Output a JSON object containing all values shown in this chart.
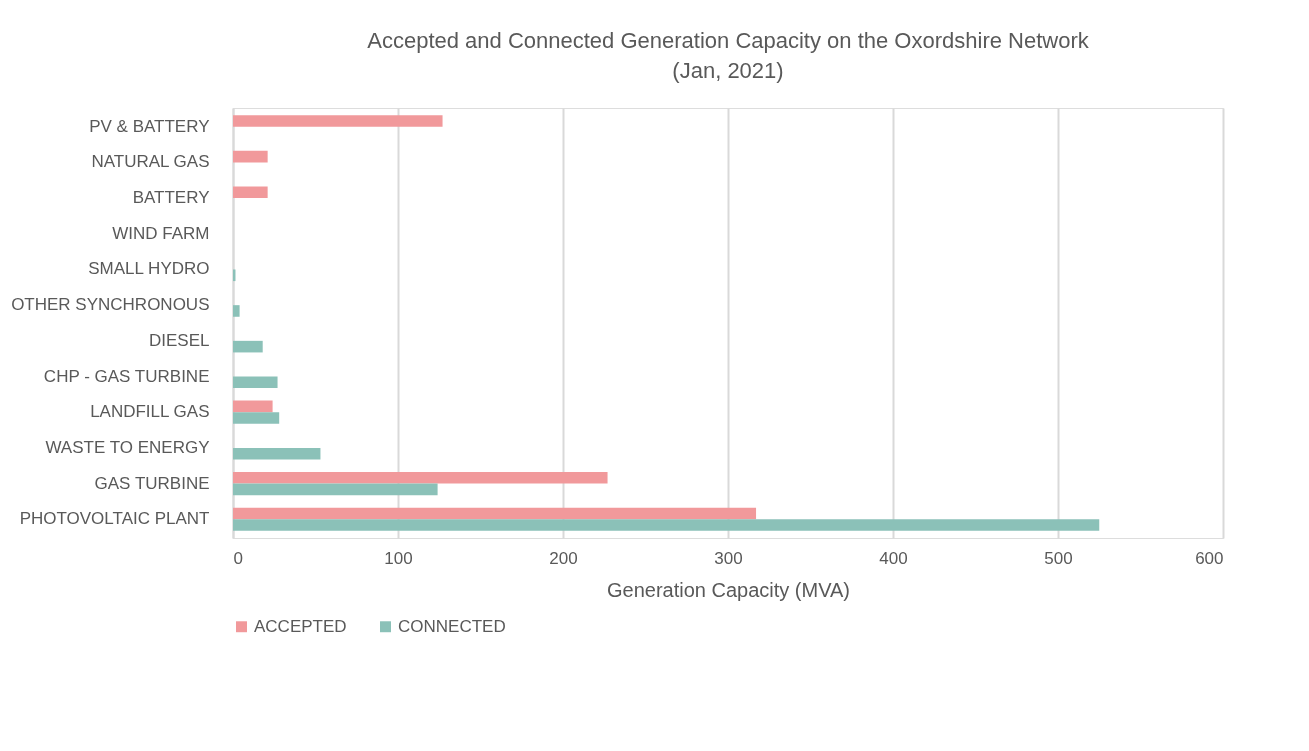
{
  "chart_data": {
    "type": "bar",
    "orientation": "horizontal",
    "title": "Accepted and Connected Generation Capacity on the Oxordshire Network",
    "subtitle": "(Jan,  2021)",
    "xlabel": "Generation Capacity (MVA)",
    "categories": [
      "PV & BATTERY",
      "NATURAL GAS",
      "BATTERY",
      "WIND FARM",
      "SMALL HYDRO",
      "OTHER SYNCHRONOUS",
      "DIESEL",
      "CHP - GAS TURBINE",
      "LANDFILL GAS",
      "WASTE TO ENERGY",
      "GAS TURBINE",
      "PHOTOVOLTAIC PLANT"
    ],
    "series": [
      {
        "name": "ACCEPTED",
        "color": "#f1999b",
        "values": [
          127,
          21,
          21,
          null,
          null,
          null,
          null,
          null,
          24,
          null,
          227,
          317
        ]
      },
      {
        "name": "CONNECTED",
        "color": "#8bc1b8",
        "values": [
          null,
          null,
          null,
          null,
          1.5,
          4,
          18,
          27,
          28,
          53,
          124,
          525
        ]
      }
    ],
    "xlim": [
      0,
      600
    ],
    "xticks": [
      0,
      100,
      200,
      300,
      400,
      500,
      600
    ],
    "grid": "x",
    "legend": "bottom"
  }
}
